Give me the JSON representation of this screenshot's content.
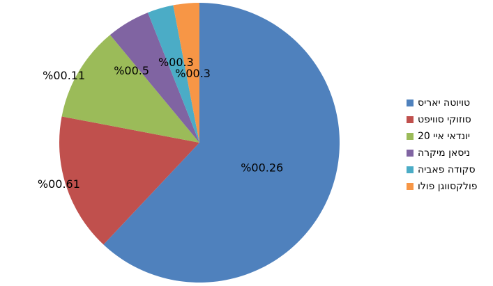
{
  "chart_data": {
    "type": "pie",
    "categories": [
      "טויוטה יאריס",
      "סוזוקי סוויפט",
      "יונדאי איי 20",
      "ניסאן מיקרה",
      "סקודה פאביה",
      "פולקסווגן פולו"
    ],
    "values": [
      62.0,
      16.0,
      11.0,
      5.0,
      3.0,
      3.0
    ],
    "data_labels": [
      "%00.26",
      "%00.61",
      "%00.11",
      "%00.5",
      "%00.3",
      "%00.3"
    ],
    "colors": [
      "#4F81BD",
      "#C0504D",
      "#9BBB59",
      "#8064A2",
      "#4BACC6",
      "#F79646"
    ],
    "legend_placement": "right",
    "title": ""
  },
  "legend": {
    "items": [
      {
        "label": "טויוטה יאריס",
        "color": "#4F81BD"
      },
      {
        "label": "סוזוקי סוויפט",
        "color": "#C0504D"
      },
      {
        "label": "יונדאי איי 20",
        "color": "#9BBB59"
      },
      {
        "label": "ניסאן מיקרה",
        "color": "#8064A2"
      },
      {
        "label": "סקודה פאביה",
        "color": "#4BACC6"
      },
      {
        "label": "פולקסווגן פולו",
        "color": "#F79646"
      }
    ]
  }
}
